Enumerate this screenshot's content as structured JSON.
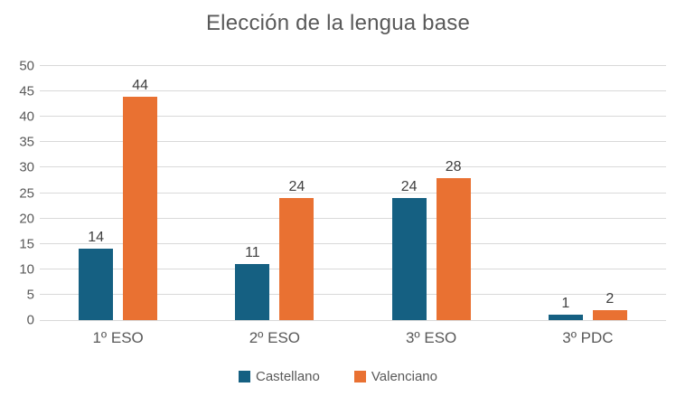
{
  "title": "Elección de la lengua base",
  "colors": {
    "castellano": "#156082",
    "valenciano": "#E97132",
    "gridline": "#D9D9D9",
    "axis_text": "#595959",
    "value_label_text": "#404040",
    "background": "#FFFFFF"
  },
  "chart_data": {
    "type": "bar",
    "title": "Elección de la lengua base",
    "categories": [
      "1º ESO",
      "2º ESO",
      "3º ESO",
      "3º PDC"
    ],
    "series": [
      {
        "name": "Castellano",
        "color": "#156082",
        "values": [
          14,
          11,
          24,
          1
        ]
      },
      {
        "name": "Valenciano",
        "color": "#E97132",
        "values": [
          44,
          24,
          28,
          2
        ]
      }
    ],
    "xlabel": "",
    "ylabel": "",
    "ylim": [
      0,
      50
    ],
    "ytick_step": 5,
    "ytick_labels": [
      "0",
      "5",
      "10",
      "15",
      "20",
      "25",
      "30",
      "35",
      "40",
      "45",
      "50"
    ],
    "grid": true,
    "data_labels": true,
    "legend_position": "bottom"
  },
  "legend": {
    "items": [
      {
        "label": "Castellano",
        "color": "#156082"
      },
      {
        "label": "Valenciano",
        "color": "#E97132"
      }
    ]
  }
}
